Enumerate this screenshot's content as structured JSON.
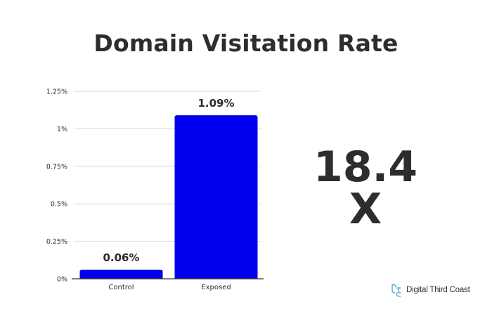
{
  "headline": "Domain Visitation Rate",
  "multiplier": "18.4 X",
  "brand": {
    "name": "Digital Third Coast",
    "logo_icon": "dtc-logo-icon",
    "logo_color": "#5aa7d6"
  },
  "chart_data": {
    "type": "bar",
    "categories": [
      "Control",
      "Exposed"
    ],
    "values": [
      0.06,
      1.09
    ],
    "value_labels": [
      "0.06%",
      "1.09%"
    ],
    "title": "Domain Visitation Rate",
    "xlabel": "",
    "ylabel": "",
    "ylim": [
      0,
      1.25
    ],
    "yticks": [
      0,
      0.25,
      0.5,
      0.75,
      1,
      1.25
    ],
    "ytick_labels": [
      "0%",
      "0.25%",
      "0.5%",
      "0.75%",
      "1%",
      "1.25%"
    ],
    "grid": true,
    "legend": "none",
    "bar_color": "#0000ee"
  }
}
